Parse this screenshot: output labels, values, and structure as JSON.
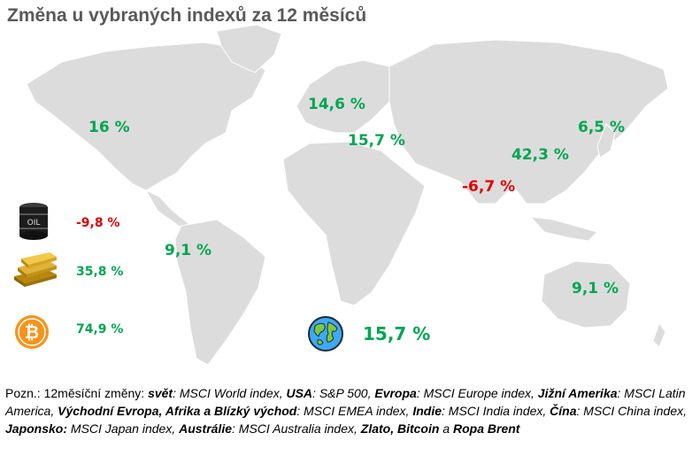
{
  "title": "Změna u vybraných indexů za 12 měsíců",
  "regions": {
    "usa": "16 %",
    "europe": "14,6 %",
    "emea": "15,7 %",
    "japan": "6,5 %",
    "china": "42,3 %",
    "india": "-6,7 %",
    "latam": "9,1 %",
    "australia": "9,1 %",
    "world": "15,7 %"
  },
  "commodities": {
    "oil": {
      "label": "OIL",
      "value": "-9,8 %"
    },
    "gold": {
      "value": "35,8 %"
    },
    "bitcoin": {
      "value": "74,9 %"
    }
  },
  "colors": {
    "positive": "#00a651",
    "negative": "#e00000",
    "title": "#595959",
    "map": "#dcdcdc"
  },
  "icons": [
    "oil-barrel-icon",
    "gold-bars-icon",
    "bitcoin-icon",
    "globe-icon"
  ],
  "note": {
    "prefix": "Pozn.: 12měsíční změny: ",
    "svet": "svět",
    "svet_idx": ": MSCI World index, ",
    "usa": "USA",
    "usa_idx": ": S&P 500, ",
    "evropa": "Evropa",
    "evropa_idx": ": MSCI Europe index, ",
    "jizni_amerika": "Jižní Amerika",
    "jizni_amerika_idx": ": MSCI Latin America, ",
    "vychodni_evropa": "Východní Evropa, Afrika a Blízký východ",
    "vychodni_evropa_idx": ": MSCI EMEA index, ",
    "indie": "Indie",
    "indie_idx": ": MSCI India index, ",
    "cina": "Čína",
    "cina_idx": ": MSCI China index, ",
    "japonsko": "Japonsko:",
    "japonsko_idx": " MSCI Japan index, ",
    "australie": "Austrálie",
    "australie_idx": ": MSCI Australia index, ",
    "zlato_bitcoin": "Zlato, Bitcoin",
    "a": " a ",
    "ropa": "Ropa Brent"
  }
}
